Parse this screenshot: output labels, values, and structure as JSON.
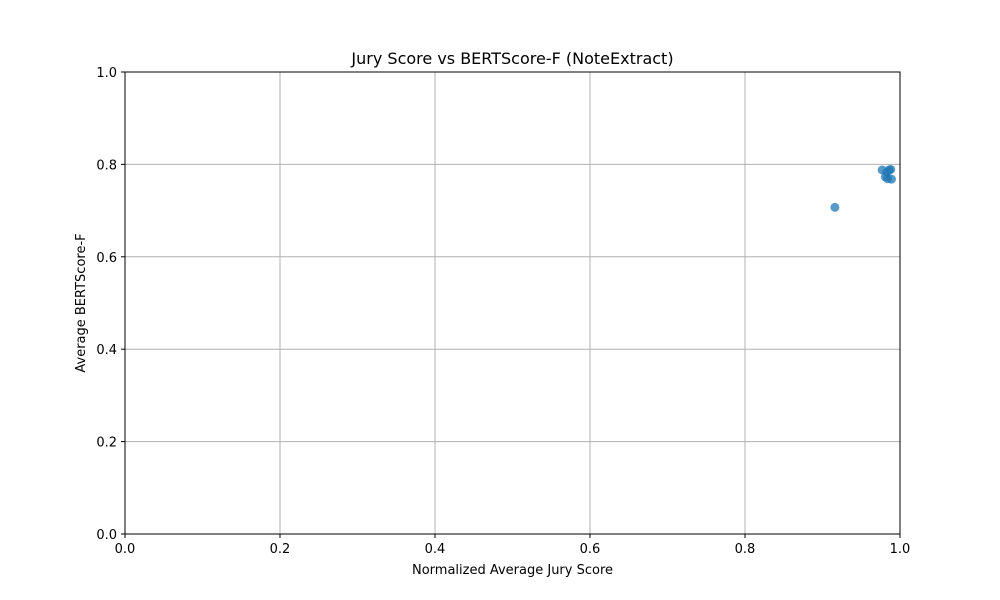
{
  "chart_data": {
    "type": "scatter",
    "title": "Jury Score vs BERTScore-F (NoteExtract)",
    "xlabel": "Normalized Average Jury Score",
    "ylabel": "Average BERTScore-F",
    "xlim": [
      0.0,
      1.0
    ],
    "ylim": [
      0.0,
      1.0
    ],
    "x_ticks": [
      "0.0",
      "0.2",
      "0.4",
      "0.6",
      "0.8",
      "1.0"
    ],
    "y_ticks": [
      "0.0",
      "0.2",
      "0.4",
      "0.6",
      "0.8",
      "1.0"
    ],
    "grid": true,
    "marker_color": "#1f77b4",
    "points": [
      {
        "x": 0.916,
        "y": 0.707
      },
      {
        "x": 0.977,
        "y": 0.788
      },
      {
        "x": 0.981,
        "y": 0.773
      },
      {
        "x": 0.983,
        "y": 0.783
      },
      {
        "x": 0.984,
        "y": 0.769
      },
      {
        "x": 0.986,
        "y": 0.788
      },
      {
        "x": 0.988,
        "y": 0.789
      },
      {
        "x": 0.989,
        "y": 0.768
      }
    ]
  }
}
